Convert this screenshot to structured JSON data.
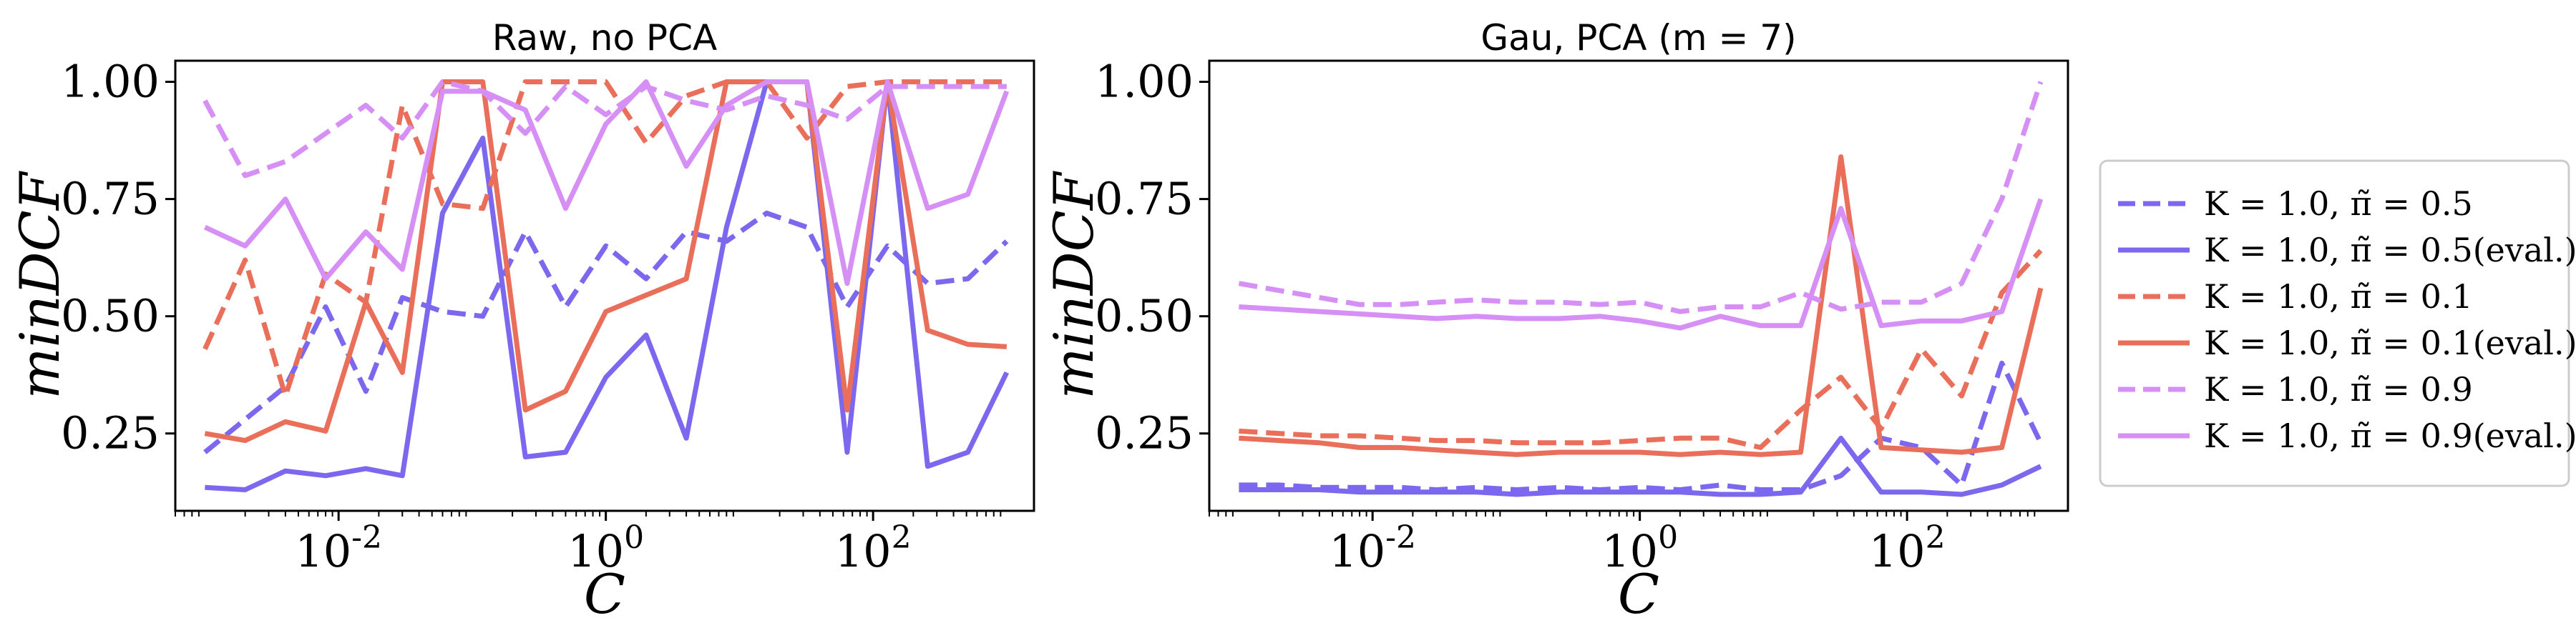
{
  "chart_data": [
    {
      "type": "line",
      "title": "Raw, no PCA",
      "xlabel": "C",
      "ylabel": "minDCF",
      "xscale": "log",
      "xlim": [
        0.0006,
        1600
      ],
      "ylim": [
        0.085,
        1.045
      ],
      "x": [
        0.001,
        0.002,
        0.004,
        0.008,
        0.016,
        0.03,
        0.06,
        0.12,
        0.25,
        0.5,
        1,
        2,
        4,
        8,
        16,
        32,
        64,
        128,
        256,
        512,
        1000
      ],
      "xticks": [
        0.01,
        1,
        100
      ],
      "xtick_labels": [
        "10^-2",
        "10^0",
        "10^2"
      ],
      "yticks": [
        0.25,
        0.5,
        0.75,
        1.0
      ],
      "ytick_labels": [
        "0.25",
        "0.50",
        "0.75",
        "1.00"
      ],
      "series": [
        {
          "name": "K = 1.0, π̃ = 0.5",
          "color": "#7b68ee",
          "dashed": true,
          "values": [
            0.21,
            0.28,
            0.35,
            0.52,
            0.34,
            0.54,
            0.51,
            0.5,
            0.68,
            0.52,
            0.65,
            0.58,
            0.68,
            0.66,
            0.72,
            0.69,
            0.52,
            0.65,
            0.57,
            0.58,
            0.66
          ]
        },
        {
          "name": "K = 1.0, π̃ = 0.5(eval.)",
          "color": "#7b68ee",
          "dashed": false,
          "values": [
            0.135,
            0.13,
            0.17,
            0.16,
            0.175,
            0.16,
            0.72,
            0.88,
            0.2,
            0.21,
            0.37,
            0.46,
            0.24,
            0.69,
            1.0,
            1.0,
            0.21,
            1.0,
            0.18,
            0.21,
            0.38
          ]
        },
        {
          "name": "K = 1.0, π̃ = 0.1",
          "color": "#ea6f5a",
          "dashed": true,
          "values": [
            0.43,
            0.62,
            0.33,
            0.59,
            0.53,
            0.95,
            0.74,
            0.73,
            1.0,
            1.0,
            1.0,
            0.87,
            0.97,
            1.0,
            1.0,
            0.88,
            0.99,
            1.0,
            1.0,
            1.0,
            1.0
          ]
        },
        {
          "name": "K = 1.0, π̃ = 0.1(eval.)",
          "color": "#ea6f5a",
          "dashed": false,
          "values": [
            0.25,
            0.235,
            0.275,
            0.255,
            0.53,
            0.38,
            1.0,
            1.0,
            0.3,
            0.34,
            0.51,
            0.545,
            0.58,
            1.0,
            1.0,
            1.0,
            0.3,
            1.0,
            0.47,
            0.44,
            0.435
          ]
        },
        {
          "name": "K = 1.0, π̃ = 0.9",
          "color": "#d68ff5",
          "dashed": true,
          "values": [
            0.96,
            0.8,
            0.83,
            0.89,
            0.95,
            0.88,
            1.0,
            0.98,
            0.89,
            0.99,
            0.93,
            0.99,
            0.96,
            0.94,
            0.97,
            0.95,
            0.92,
            0.99,
            0.99,
            0.99,
            0.99
          ]
        },
        {
          "name": "K = 1.0, π̃ = 0.9(eval.)",
          "color": "#d68ff5",
          "dashed": false,
          "values": [
            0.69,
            0.65,
            0.75,
            0.58,
            0.68,
            0.6,
            0.98,
            0.98,
            0.94,
            0.73,
            0.91,
            1.0,
            0.82,
            0.95,
            1.0,
            1.0,
            0.57,
            1.0,
            0.73,
            0.76,
            0.98
          ]
        }
      ]
    },
    {
      "type": "line",
      "title": "Gau, PCA (m = 7)",
      "xlabel": "C",
      "ylabel": "minDCF",
      "xscale": "log",
      "xlim": [
        0.0006,
        1600
      ],
      "ylim": [
        0.085,
        1.045
      ],
      "x": [
        0.001,
        0.002,
        0.004,
        0.008,
        0.016,
        0.03,
        0.06,
        0.12,
        0.25,
        0.5,
        1,
        2,
        4,
        8,
        16,
        32,
        64,
        128,
        256,
        512,
        1000
      ],
      "xticks": [
        0.01,
        1,
        100
      ],
      "xtick_labels": [
        "10^-2",
        "10^0",
        "10^2"
      ],
      "yticks": [
        0.25,
        0.5,
        0.75,
        1.0
      ],
      "ytick_labels": [
        "0.25",
        "0.50",
        "0.75",
        "1.00"
      ],
      "series": [
        {
          "name": "K = 1.0, π̃ = 0.5",
          "color": "#7b68ee",
          "dashed": true,
          "values": [
            0.14,
            0.14,
            0.135,
            0.135,
            0.135,
            0.13,
            0.135,
            0.13,
            0.135,
            0.13,
            0.135,
            0.13,
            0.14,
            0.13,
            0.13,
            0.16,
            0.24,
            0.22,
            0.14,
            0.4,
            0.23
          ]
        },
        {
          "name": "K = 1.0, π̃ = 0.5(eval.)",
          "color": "#7b68ee",
          "dashed": false,
          "values": [
            0.13,
            0.13,
            0.13,
            0.125,
            0.125,
            0.125,
            0.125,
            0.12,
            0.125,
            0.125,
            0.125,
            0.125,
            0.12,
            0.12,
            0.125,
            0.24,
            0.125,
            0.125,
            0.12,
            0.14,
            0.18
          ]
        },
        {
          "name": "K = 1.0, π̃ = 0.1",
          "color": "#ea6f5a",
          "dashed": true,
          "values": [
            0.255,
            0.25,
            0.245,
            0.245,
            0.24,
            0.235,
            0.235,
            0.23,
            0.23,
            0.23,
            0.235,
            0.24,
            0.24,
            0.22,
            0.3,
            0.37,
            0.26,
            0.43,
            0.33,
            0.55,
            0.64
          ]
        },
        {
          "name": "K = 1.0, π̃ = 0.1(eval.)",
          "color": "#ea6f5a",
          "dashed": false,
          "values": [
            0.24,
            0.235,
            0.23,
            0.22,
            0.22,
            0.215,
            0.21,
            0.205,
            0.21,
            0.21,
            0.21,
            0.205,
            0.21,
            0.205,
            0.21,
            0.84,
            0.22,
            0.215,
            0.21,
            0.22,
            0.56
          ]
        },
        {
          "name": "K = 1.0, π̃ = 0.9",
          "color": "#d68ff5",
          "dashed": true,
          "values": [
            0.57,
            0.555,
            0.54,
            0.525,
            0.525,
            0.53,
            0.535,
            0.53,
            0.53,
            0.525,
            0.53,
            0.51,
            0.52,
            0.52,
            0.55,
            0.515,
            0.53,
            0.53,
            0.57,
            0.75,
            1.0
          ]
        },
        {
          "name": "K = 1.0, π̃ = 0.9(eval.)",
          "color": "#d68ff5",
          "dashed": false,
          "values": [
            0.52,
            0.515,
            0.51,
            0.505,
            0.5,
            0.495,
            0.5,
            0.495,
            0.495,
            0.5,
            0.49,
            0.475,
            0.5,
            0.48,
            0.48,
            0.73,
            0.48,
            0.49,
            0.49,
            0.51,
            0.75
          ]
        }
      ]
    }
  ],
  "legend": {
    "placement": "right",
    "entries": [
      {
        "label": "K = 1.0, π̃ = 0.5",
        "color": "#7b68ee",
        "dashed": true
      },
      {
        "label": "K = 1.0, π̃ = 0.5(eval.)",
        "color": "#7b68ee",
        "dashed": false
      },
      {
        "label": "K = 1.0, π̃ = 0.1",
        "color": "#ea6f5a",
        "dashed": true
      },
      {
        "label": "K = 1.0, π̃ = 0.1(eval.)",
        "color": "#ea6f5a",
        "dashed": false
      },
      {
        "label": "K = 1.0, π̃ = 0.9",
        "color": "#d68ff5",
        "dashed": true
      },
      {
        "label": "K = 1.0, π̃ = 0.9(eval.)",
        "color": "#d68ff5",
        "dashed": false
      }
    ]
  }
}
